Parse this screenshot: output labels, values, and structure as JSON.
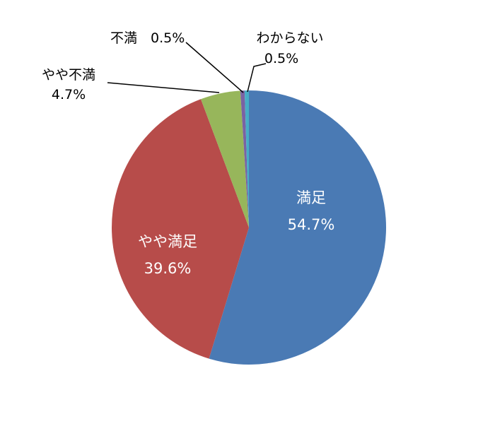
{
  "chart_data": {
    "type": "pie",
    "categories": [
      "満足",
      "やや満足",
      "やや不満",
      "不満",
      "わからない"
    ],
    "values": [
      54.7,
      39.6,
      4.7,
      0.5,
      0.5
    ],
    "value_labels": [
      "54.7%",
      "39.6%",
      "4.7%",
      "0.5%",
      "0.5%"
    ],
    "colors": [
      "#4a7ab4",
      "#b74c4a",
      "#97b65b",
      "#7a63a3",
      "#47adc6"
    ],
    "start_angle": "12 o'clock",
    "direction": "clockwise",
    "legend": "none"
  }
}
